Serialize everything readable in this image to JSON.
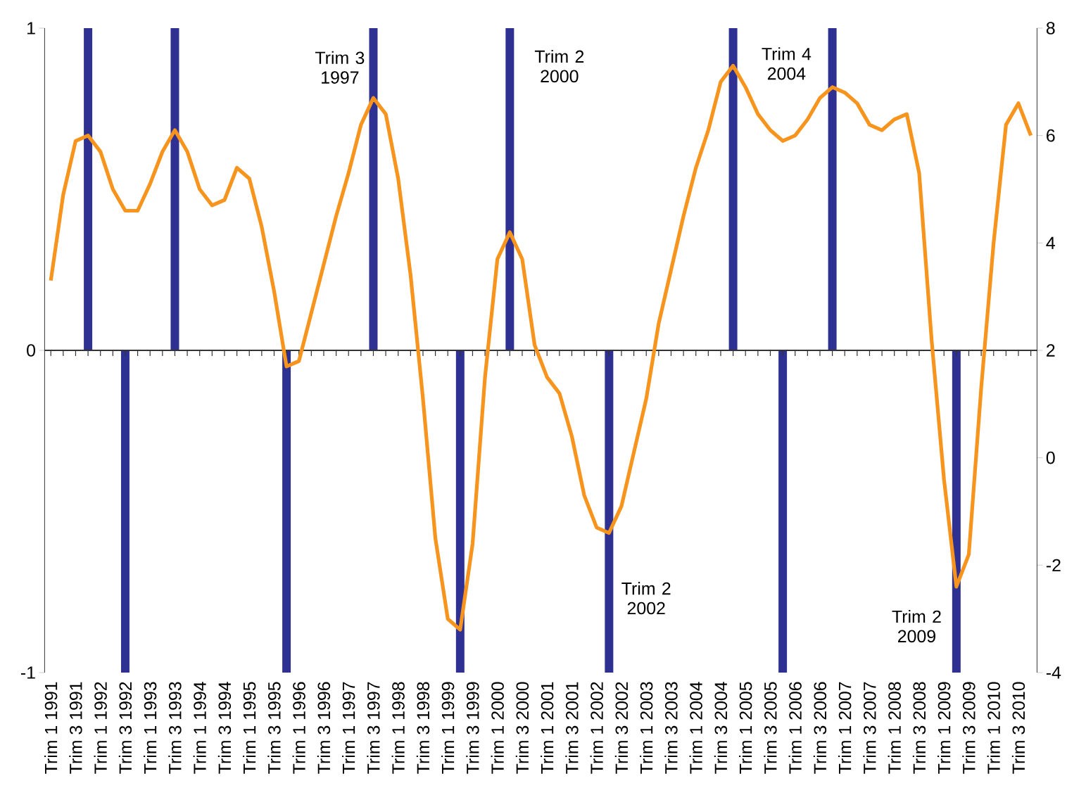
{
  "chart_data": {
    "type": "bar",
    "categories": [
      "Trim 1 1991",
      null,
      "Trim 3 1991",
      null,
      "Trim 1 1992",
      null,
      "Trim 3 1992",
      null,
      "Trim 1 1993",
      null,
      "Trim 3 1993",
      null,
      "Trim 1 1994",
      null,
      "Trim 3 1994",
      null,
      "Trim 1 1995",
      null,
      "Trim 3 1995",
      null,
      "Trim 1 1996",
      null,
      "Trim 3 1996",
      null,
      "Trim 1 1997",
      null,
      "Trim 3 1997",
      null,
      "Trim 1 1998",
      null,
      "Trim 3 1998",
      null,
      "Trim 1 1999",
      null,
      "Trim 3 1999",
      null,
      "Trim 1 2000",
      null,
      "Trim 3 2000",
      null,
      "Trim 1 2001",
      null,
      "Trim 3 2001",
      null,
      "Trim 1 2002",
      null,
      "Trim 3 2002",
      null,
      "Trim 1 2003",
      null,
      "Trim 3 2003",
      null,
      "Trim 1 2004",
      null,
      "Trim 3 2004",
      null,
      "Trim 1 2005",
      null,
      "Trim 3 2005",
      null,
      "Trim 1 2006",
      null,
      "Trim 3 2006",
      null,
      "Trim 1 2007",
      null,
      "Trim 3 2007",
      null,
      "Trim 1 2008",
      null,
      "Trim 3 2008",
      null,
      "Trim 1 2009",
      null,
      "Trim 3 2009",
      null,
      "Trim 1 2010",
      null,
      "Trim 3 2010",
      null
    ],
    "series": [
      {
        "color": "#2e3192",
        "values": [
          null,
          null,
          null,
          1,
          null,
          null,
          -1,
          null,
          null,
          null,
          1,
          null,
          null,
          null,
          null,
          null,
          null,
          null,
          null,
          -1,
          null,
          null,
          null,
          null,
          null,
          null,
          1,
          null,
          null,
          null,
          null,
          null,
          null,
          -1,
          null,
          null,
          null,
          1,
          null,
          null,
          null,
          null,
          null,
          null,
          null,
          -1,
          null,
          null,
          null,
          null,
          null,
          null,
          null,
          null,
          null,
          1,
          null,
          null,
          null,
          -1,
          null,
          null,
          null,
          1,
          null,
          null,
          null,
          null,
          null,
          null,
          null,
          null,
          null,
          -1,
          null,
          null,
          null,
          null,
          null,
          null
        ]
      },
      {
        "type": "line",
        "axis": "y2",
        "color": "#f7941d",
        "values": [
          3.3,
          4.9,
          5.9,
          6.0,
          5.7,
          5.0,
          4.6,
          4.6,
          5.1,
          5.7,
          6.1,
          5.7,
          5.0,
          4.7,
          4.8,
          5.4,
          5.2,
          4.3,
          3.1,
          1.7,
          1.8,
          2.7,
          3.6,
          4.5,
          5.3,
          6.2,
          6.7,
          6.4,
          5.2,
          3.4,
          1.1,
          -1.5,
          -3.0,
          -3.2,
          -1.6,
          1.5,
          3.7,
          4.2,
          3.7,
          2.1,
          1.5,
          1.2,
          0.4,
          -0.7,
          -1.3,
          -1.4,
          -0.9,
          0.1,
          1.1,
          2.5,
          3.5,
          4.5,
          5.4,
          6.1,
          7.0,
          7.3,
          6.9,
          6.4,
          6.1,
          5.9,
          6.0,
          6.3,
          6.7,
          6.9,
          6.8,
          6.6,
          6.2,
          6.1,
          6.3,
          6.4,
          5.3,
          2.2,
          -0.4,
          -2.4,
          -1.8,
          1.3,
          4.0,
          6.2,
          6.6,
          6.0
        ]
      }
    ],
    "ylim": [
      -1,
      1
    ],
    "yticks": [
      -1,
      0,
      1
    ],
    "y2lim": [
      -4,
      8
    ],
    "y2ticks": [
      -4,
      -2,
      0,
      2,
      4,
      6,
      8
    ],
    "annotations": [
      "Trim 3 1997",
      "Trim 2 2000",
      "Trim 2 2002",
      "Trim 4 2004",
      "Trim 2 2009"
    ]
  }
}
